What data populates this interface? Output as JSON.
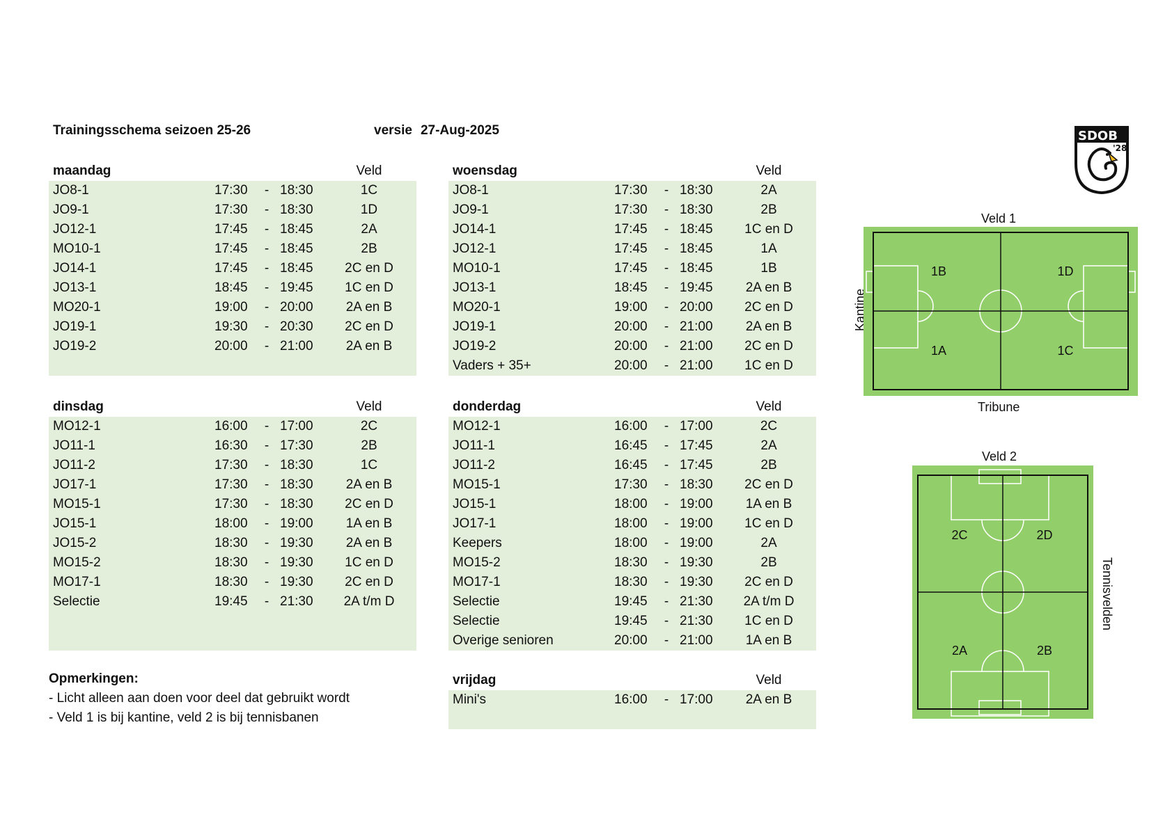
{
  "header": {
    "title": "Trainingsschema seizoen 25-26",
    "version_label": "versie",
    "version_date": "27-Aug-2025"
  },
  "veld_label": "Veld",
  "schedule": {
    "maandag": {
      "day": "maandag",
      "rows": [
        {
          "team": "JO8-1",
          "start": "17:30",
          "end": "18:30",
          "field": "1C"
        },
        {
          "team": "JO9-1",
          "start": "17:30",
          "end": "18:30",
          "field": "1D"
        },
        {
          "team": "JO12-1",
          "start": "17:45",
          "end": "18:45",
          "field": "2A"
        },
        {
          "team": "MO10-1",
          "start": "17:45",
          "end": "18:45",
          "field": "2B"
        },
        {
          "team": "JO14-1",
          "start": "17:45",
          "end": "18:45",
          "field": "2C en D"
        },
        {
          "team": "JO13-1",
          "start": "18:45",
          "end": "19:45",
          "field": "1C en D"
        },
        {
          "team": "MO20-1",
          "start": "19:00",
          "end": "20:00",
          "field": "2A en B"
        },
        {
          "team": "JO19-1",
          "start": "19:30",
          "end": "20:30",
          "field": "2C en D"
        },
        {
          "team": "JO19-2",
          "start": "20:00",
          "end": "21:00",
          "field": "2A en B"
        },
        {
          "team": "",
          "start": "",
          "end": "",
          "field": ""
        }
      ]
    },
    "woensdag": {
      "day": "woensdag",
      "rows": [
        {
          "team": "JO8-1",
          "start": "17:30",
          "end": "18:30",
          "field": "2A"
        },
        {
          "team": "JO9-1",
          "start": "17:30",
          "end": "18:30",
          "field": "2B"
        },
        {
          "team": "JO14-1",
          "start": "17:45",
          "end": "18:45",
          "field": "1C en D"
        },
        {
          "team": "JO12-1",
          "start": "17:45",
          "end": "18:45",
          "field": "1A"
        },
        {
          "team": "MO10-1",
          "start": "17:45",
          "end": "18:45",
          "field": "1B"
        },
        {
          "team": "JO13-1",
          "start": "18:45",
          "end": "19:45",
          "field": "2A en B"
        },
        {
          "team": "MO20-1",
          "start": "19:00",
          "end": "20:00",
          "field": "2C en D"
        },
        {
          "team": "JO19-1",
          "start": "20:00",
          "end": "21:00",
          "field": "2A en B"
        },
        {
          "team": "JO19-2",
          "start": "20:00",
          "end": "21:00",
          "field": "2C en D"
        },
        {
          "team": "Vaders + 35+",
          "start": "20:00",
          "end": "21:00",
          "field": "1C en D"
        }
      ]
    },
    "dinsdag": {
      "day": "dinsdag",
      "rows": [
        {
          "team": "MO12-1",
          "start": "16:00",
          "end": "17:00",
          "field": "2C"
        },
        {
          "team": "JO11-1",
          "start": "16:30",
          "end": "17:30",
          "field": "2B"
        },
        {
          "team": "JO11-2",
          "start": "17:30",
          "end": "18:30",
          "field": "1C"
        },
        {
          "team": "JO17-1",
          "start": "17:30",
          "end": "18:30",
          "field": "2A en B"
        },
        {
          "team": "MO15-1",
          "start": "17:30",
          "end": "18:30",
          "field": "2C en D"
        },
        {
          "team": "JO15-1",
          "start": "18:00",
          "end": "19:00",
          "field": "1A en B"
        },
        {
          "team": "JO15-2",
          "start": "18:30",
          "end": "19:30",
          "field": "2A en B"
        },
        {
          "team": "MO15-2",
          "start": "18:30",
          "end": "19:30",
          "field": "1C en D"
        },
        {
          "team": "MO17-1",
          "start": "18:30",
          "end": "19:30",
          "field": "2C en D"
        },
        {
          "team": "Selectie",
          "start": "19:45",
          "end": "21:30",
          "field": "2A t/m D"
        },
        {
          "team": "",
          "start": "",
          "end": "",
          "field": ""
        },
        {
          "team": "",
          "start": "",
          "end": "",
          "field": ""
        }
      ]
    },
    "donderdag": {
      "day": "donderdag",
      "rows": [
        {
          "team": "MO12-1",
          "start": "16:00",
          "end": "17:00",
          "field": "2C"
        },
        {
          "team": "JO11-1",
          "start": "16:45",
          "end": "17:45",
          "field": "2A"
        },
        {
          "team": "JO11-2",
          "start": "16:45",
          "end": "17:45",
          "field": "2B"
        },
        {
          "team": "MO15-1",
          "start": "17:30",
          "end": "18:30",
          "field": "2C en D"
        },
        {
          "team": "JO15-1",
          "start": "18:00",
          "end": "19:00",
          "field": "1A en B"
        },
        {
          "team": "JO17-1",
          "start": "18:00",
          "end": "19:00",
          "field": "1C en D"
        },
        {
          "team": "Keepers",
          "start": "18:00",
          "end": "19:00",
          "field": "2A"
        },
        {
          "team": "MO15-2",
          "start": "18:30",
          "end": "19:30",
          "field": "2B"
        },
        {
          "team": "MO17-1",
          "start": "18:30",
          "end": "19:30",
          "field": "2C en D"
        },
        {
          "team": "Selectie",
          "start": "19:45",
          "end": "21:30",
          "field": "2A t/m D"
        },
        {
          "team": "Selectie",
          "start": "19:45",
          "end": "21:30",
          "field": "1C en D"
        },
        {
          "team": "Overige senioren",
          "start": "20:00",
          "end": "21:00",
          "field": "1A en B"
        }
      ]
    },
    "vrijdag": {
      "day": "vrijdag",
      "rows": [
        {
          "team": "Mini's",
          "start": "16:00",
          "end": "17:00",
          "field": "2A en B"
        },
        {
          "team": "",
          "start": "",
          "end": "",
          "field": ""
        }
      ]
    }
  },
  "notes": {
    "title": "Opmerkingen:",
    "lines": [
      "- Licht alleen aan doen voor deel dat gebruikt wordt",
      "- Veld 1 is bij kantine, veld 2 is bij tennisbanen"
    ]
  },
  "logo": {
    "text": "SDOB",
    "year": "'28"
  },
  "fields": {
    "veld1": {
      "title": "Veld 1",
      "left_label": "Kantine",
      "bottom_label": "Tribune",
      "sections": [
        "1B",
        "1D",
        "1A",
        "1C"
      ]
    },
    "veld2": {
      "title": "Veld 2",
      "right_label": "Tennisvelden",
      "sections": [
        "2C",
        "2D",
        "2A",
        "2B"
      ]
    }
  },
  "colors": {
    "table_bg": "#e3eedb",
    "pitch": "#92cf6a"
  }
}
